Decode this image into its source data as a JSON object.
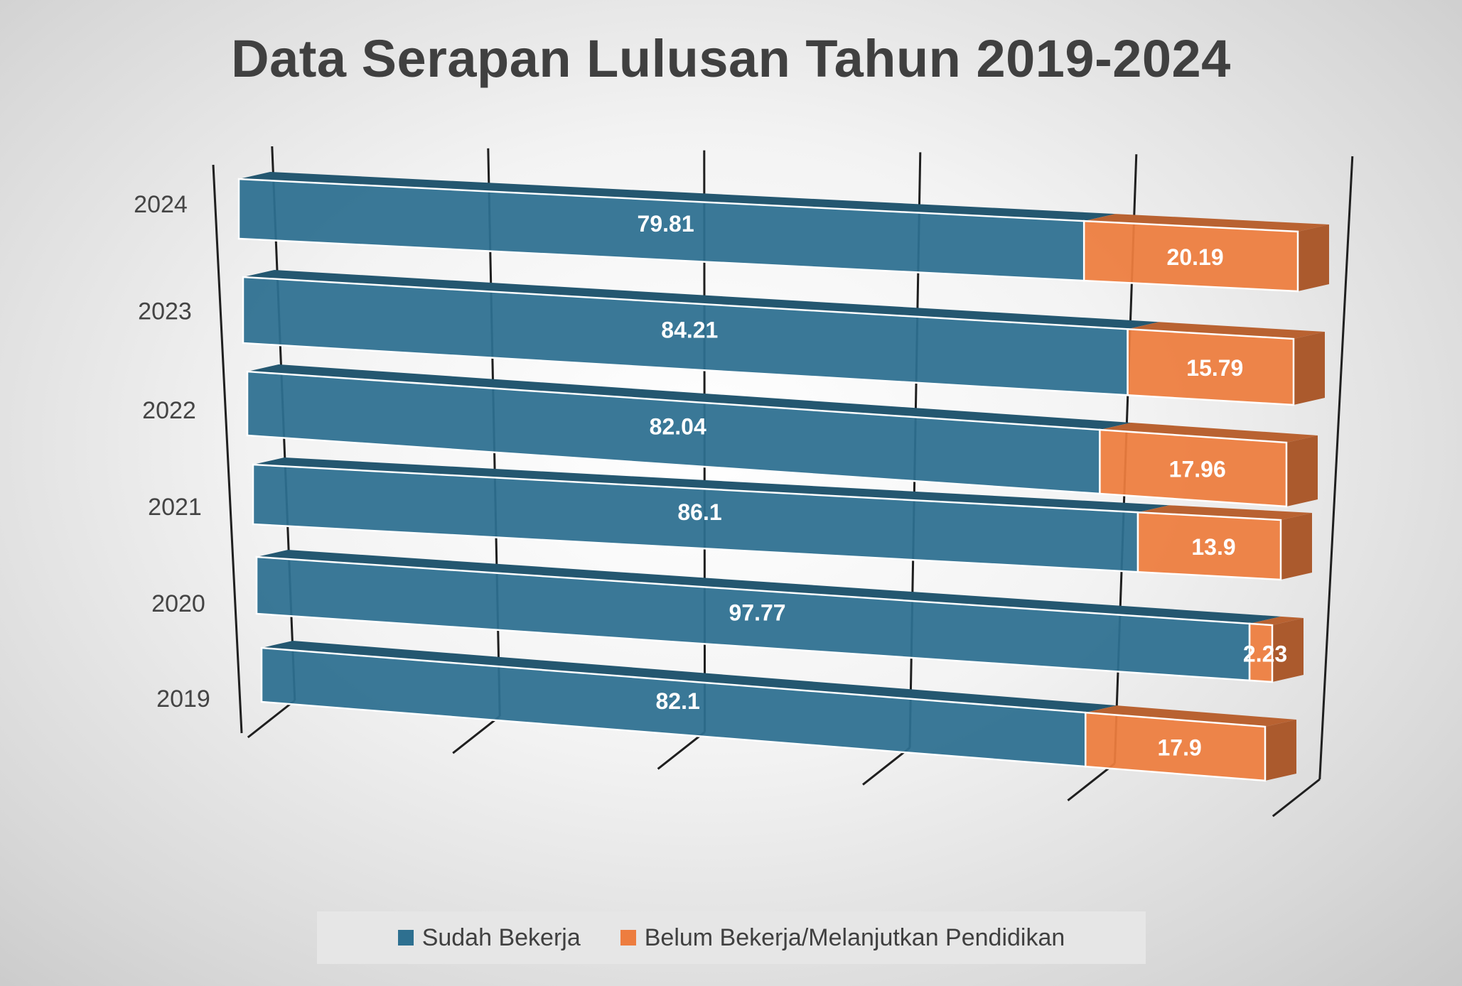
{
  "chart_data": {
    "type": "bar",
    "orientation": "horizontal-stacked-3d",
    "title": "Data Serapan Lulusan Tahun 2019-2024",
    "categories": [
      "2024",
      "2023",
      "2022",
      "2021",
      "2020",
      "2019"
    ],
    "series": [
      {
        "name": "Sudah Bekerja",
        "color": "#2E7090",
        "values": [
          79.81,
          84.21,
          82.04,
          86.1,
          97.77,
          82.1
        ]
      },
      {
        "name": "Belum Bekerja/Melanjutkan Pendidikan",
        "color": "#ED7D3F",
        "values": [
          20.19,
          15.79,
          17.96,
          13.9,
          2.23,
          17.9
        ]
      }
    ],
    "xlim": [
      0,
      100
    ],
    "legend_position": "bottom",
    "grid": true
  }
}
